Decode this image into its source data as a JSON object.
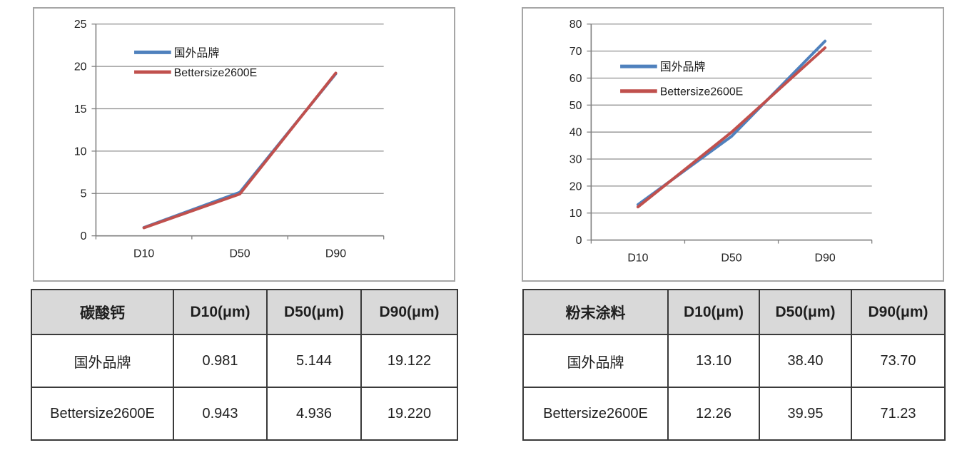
{
  "colors": {
    "series_blue": "#4F81BD",
    "series_red": "#C0504D",
    "gridline": "#8f8f8f",
    "axis": "#7f7f7f",
    "text": "#1f1f1f",
    "chart_border": "#a6a6a6",
    "table_border": "#3a3a3a",
    "table_header_bg": "#d9d9d9"
  },
  "chart_data": [
    {
      "type": "line",
      "panel": "left",
      "title": "",
      "xlabel": "",
      "ylabel": "",
      "categories": [
        "D10",
        "D50",
        "D90"
      ],
      "series": [
        {
          "name": "国外品牌",
          "color": "#4F81BD",
          "values": [
            0.981,
            5.144,
            19.122
          ]
        },
        {
          "name": "Bettersize2600E",
          "color": "#C0504D",
          "values": [
            0.943,
            4.936,
            19.22
          ]
        }
      ],
      "ylim": [
        0,
        25
      ],
      "ytick_step": 5,
      "grid": true,
      "legend_position": "inside-upper-left"
    },
    {
      "type": "line",
      "panel": "right",
      "title": "",
      "xlabel": "",
      "ylabel": "",
      "categories": [
        "D10",
        "D50",
        "D90"
      ],
      "series": [
        {
          "name": "国外品牌",
          "color": "#4F81BD",
          "values": [
            13.1,
            38.4,
            73.7
          ]
        },
        {
          "name": "Bettersize2600E",
          "color": "#C0504D",
          "values": [
            12.26,
            39.95,
            71.23
          ]
        }
      ],
      "ylim": [
        0,
        80
      ],
      "ytick_step": 10,
      "grid": true,
      "legend_position": "inside-upper-left"
    },
    {
      "type": "table",
      "panel": "left",
      "title": "碳酸钙",
      "headers": [
        "碳酸钙",
        "D10(μm)",
        "D50(μm)",
        "D90(μm)"
      ],
      "rows": [
        [
          "国外品牌",
          "0.981",
          "5.144",
          "19.122"
        ],
        [
          "Bettersize2600E",
          "0.943",
          "4.936",
          "19.220"
        ]
      ]
    },
    {
      "type": "table",
      "panel": "right",
      "title": "粉末涂料",
      "headers": [
        "粉末涂料",
        "D10(μm)",
        "D50(μm)",
        "D90(μm)"
      ],
      "rows": [
        [
          "国外品牌",
          "13.10",
          "38.40",
          "73.70"
        ],
        [
          "Bettersize2600E",
          "12.26",
          "39.95",
          "71.23"
        ]
      ]
    }
  ]
}
